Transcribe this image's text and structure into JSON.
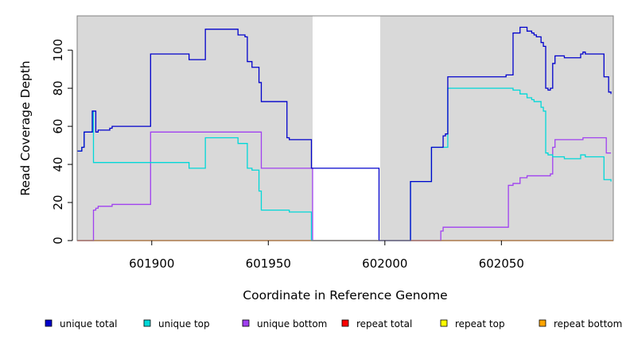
{
  "chart_data": {
    "type": "line",
    "title": "",
    "xlabel": "Coordinate in Reference Genome",
    "ylabel": "Read Coverage Depth",
    "xlim": [
      601868,
      602098
    ],
    "ylim": [
      0,
      118
    ],
    "x_ticks": [
      601900,
      601950,
      602000,
      602050
    ],
    "y_ticks": [
      0,
      20,
      40,
      60,
      80,
      100
    ],
    "shaded_regions": [
      [
        601868,
        601969
      ],
      [
        601998,
        602098
      ]
    ],
    "shade_color": "#d9d9d9",
    "grid": false,
    "legend_position": "bottom",
    "series": [
      {
        "name": "unique total",
        "color": "#0000cc",
        "x": [
          601868,
          601869,
          601870,
          601871,
          601874,
          601874.5,
          601875,
          601876,
          601877,
          601882,
          601883,
          601899,
          601899.5,
          601915,
          601916,
          601922,
          601923,
          601937,
          601938,
          601940,
          601941,
          601943,
          601946,
          601947,
          601958,
          601959,
          601968.5,
          601969,
          601997.5,
          601998,
          602011,
          602012,
          602019,
          602020,
          602024,
          602025,
          602026,
          602027,
          602052,
          602053,
          602055,
          602056,
          602058,
          602061,
          602063,
          602064,
          602065,
          602066,
          602067,
          602068,
          602069,
          602070,
          602071,
          602072,
          602073,
          602076,
          602077,
          602083,
          602084,
          602085,
          602086,
          602094,
          602095,
          602096,
          602097
        ],
        "y": [
          47,
          47,
          49,
          57,
          57,
          68,
          68,
          57,
          58,
          59,
          60,
          60,
          98,
          98,
          95,
          95,
          111,
          108,
          108,
          107,
          94,
          91,
          83,
          73,
          54,
          53,
          38,
          38,
          0,
          0,
          31,
          31,
          31,
          49,
          49,
          55,
          56,
          86,
          87,
          87,
          109,
          109,
          112,
          110,
          109,
          108,
          107,
          107,
          104,
          102,
          80,
          79,
          80,
          93,
          97,
          97,
          96,
          96,
          98,
          99,
          98,
          86,
          86,
          78,
          77
        ]
      },
      {
        "name": "unique top",
        "color": "#00d8d8",
        "x": [
          601868,
          601869,
          601870,
          601871,
          601874,
          601874.5,
          601875,
          601876,
          601877,
          601882,
          601883,
          601899,
          601899.5,
          601915,
          601916,
          601922,
          601923,
          601937,
          601938,
          601940,
          601941,
          601943,
          601946,
          601947,
          601958,
          601959,
          601968.5,
          601969,
          601997.5,
          601998,
          602011,
          602012,
          602019,
          602020,
          602024,
          602025,
          602026,
          602027,
          602052,
          602053,
          602055,
          602056,
          602058,
          602061,
          602063,
          602064,
          602065,
          602066,
          602067,
          602068,
          602069,
          602070,
          602071,
          602072,
          602073,
          602076,
          602077,
          602083,
          602084,
          602085,
          602086,
          602094,
          602095,
          602096,
          602097
        ],
        "y": [
          47,
          47,
          49,
          57,
          57,
          68,
          41,
          41,
          41,
          41,
          41,
          41,
          41,
          41,
          38,
          38,
          54,
          51,
          51,
          51,
          38,
          37,
          26,
          16,
          16,
          15,
          0,
          0,
          0,
          0,
          31,
          31,
          31,
          49,
          49,
          49,
          49,
          80,
          80,
          80,
          79,
          79,
          77,
          75,
          74,
          73,
          73,
          73,
          70,
          68,
          46,
          45,
          45,
          44,
          44,
          44,
          43,
          43,
          45,
          45,
          44,
          32,
          32,
          32,
          31
        ]
      },
      {
        "name": "unique bottom",
        "color": "#a040f0",
        "x": [
          601868,
          601874,
          601874.5,
          601875,
          601876,
          601877,
          601882,
          601883,
          601899,
          601899.5,
          601915,
          601916,
          601922,
          601923,
          601937,
          601938,
          601940,
          601941,
          601943,
          601946,
          601947,
          601958,
          601959,
          601968.5,
          601969,
          601997.5,
          601998,
          602011,
          602012,
          602019,
          602020,
          602024,
          602025,
          602026,
          602027,
          602052,
          602053,
          602055,
          602056,
          602058,
          602061,
          602063,
          602064,
          602065,
          602066,
          602067,
          602068,
          602069,
          602070,
          602071,
          602072,
          602073,
          602076,
          602077,
          602083,
          602084,
          602085,
          602086,
          602094,
          602095,
          602096,
          602097
        ],
        "y": [
          0,
          0,
          0,
          16,
          17,
          18,
          18,
          19,
          19,
          57,
          57,
          57,
          57,
          57,
          57,
          57,
          57,
          57,
          57,
          57,
          38,
          38,
          38,
          38,
          0,
          0,
          0,
          0,
          0,
          0,
          0,
          5,
          7,
          7,
          7,
          7,
          29,
          30,
          30,
          33,
          34,
          34,
          34,
          34,
          34,
          34,
          34,
          34,
          34,
          35,
          49,
          53,
          53,
          53,
          53,
          53,
          54,
          54,
          54,
          46,
          46,
          46
        ]
      },
      {
        "name": "repeat total",
        "color": "#ff0000",
        "x": [
          601868,
          602098
        ],
        "y": [
          0,
          0
        ]
      },
      {
        "name": "repeat top",
        "color": "#ffff00",
        "x": [
          601868,
          602098
        ],
        "y": [
          0,
          0
        ]
      },
      {
        "name": "repeat bottom",
        "color": "#ffa500",
        "x": [
          601868,
          602098
        ],
        "y": [
          0,
          0
        ]
      }
    ]
  }
}
